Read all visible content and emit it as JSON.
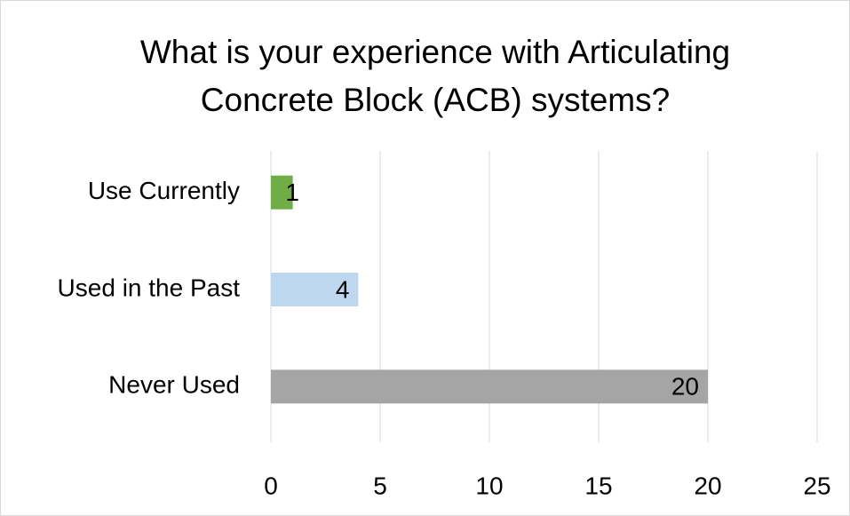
{
  "chart_data": {
    "type": "bar",
    "orientation": "horizontal",
    "title": "What is your experience with Articulating Concrete Block (ACB) systems?",
    "categories": [
      "Use Currently",
      "Used in the Past",
      "Never Used"
    ],
    "values": [
      1,
      4,
      20
    ],
    "colors": [
      "#70ad47",
      "#bdd7ee",
      "#a5a5a5"
    ],
    "xlim": [
      0,
      25
    ],
    "xticks": [
      0,
      5,
      10,
      15,
      20,
      25
    ],
    "grid": true
  }
}
